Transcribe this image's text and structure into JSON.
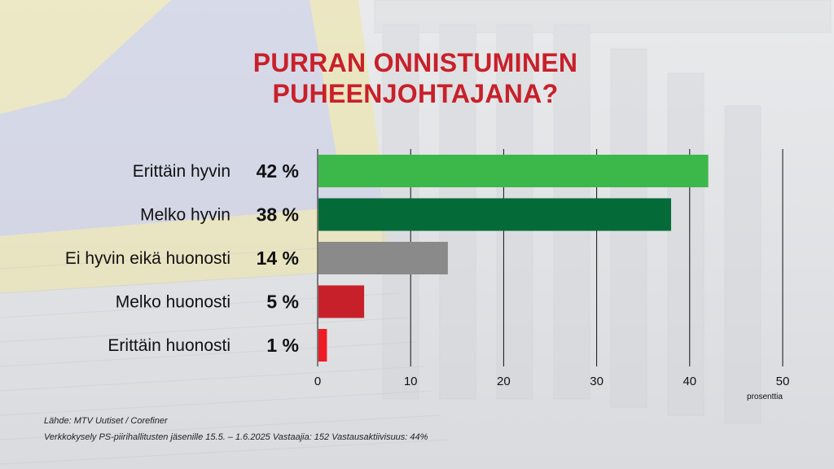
{
  "title_lines": [
    "PURRAN ONNISTUMINEN",
    "PUHEENJOHTAJANA?"
  ],
  "chart_data": {
    "type": "bar",
    "orientation": "horizontal",
    "categories": [
      "Erittäin hyvin",
      "Melko hyvin",
      "Ei hyvin eikä huonosti",
      "Melko huonosti",
      "Erittäin huonosti"
    ],
    "values": [
      42,
      38,
      14,
      5,
      1
    ],
    "value_labels": [
      "42 %",
      "38 %",
      "14 %",
      "5 %",
      "1 %"
    ],
    "colors": [
      "#3cb84a",
      "#046a38",
      "#8a8a8a",
      "#c8202a",
      "#ee1c24"
    ],
    "xlim": [
      0,
      50
    ],
    "xticks": [
      0,
      10,
      20,
      30,
      40,
      50
    ],
    "tick_labels": [
      "0",
      "10",
      "20",
      "30",
      "40",
      "50"
    ],
    "xlabel": "prosenttia",
    "grid": true
  },
  "source": {
    "line1": "Lähde: MTV Uutiset / Corefiner",
    "line2": "Verkkokysely PS-piirihallitusten jäsenille 15.5. – 1.6.2025 Vastaajia: 152 Vastausaktiivisuus: 44%"
  }
}
